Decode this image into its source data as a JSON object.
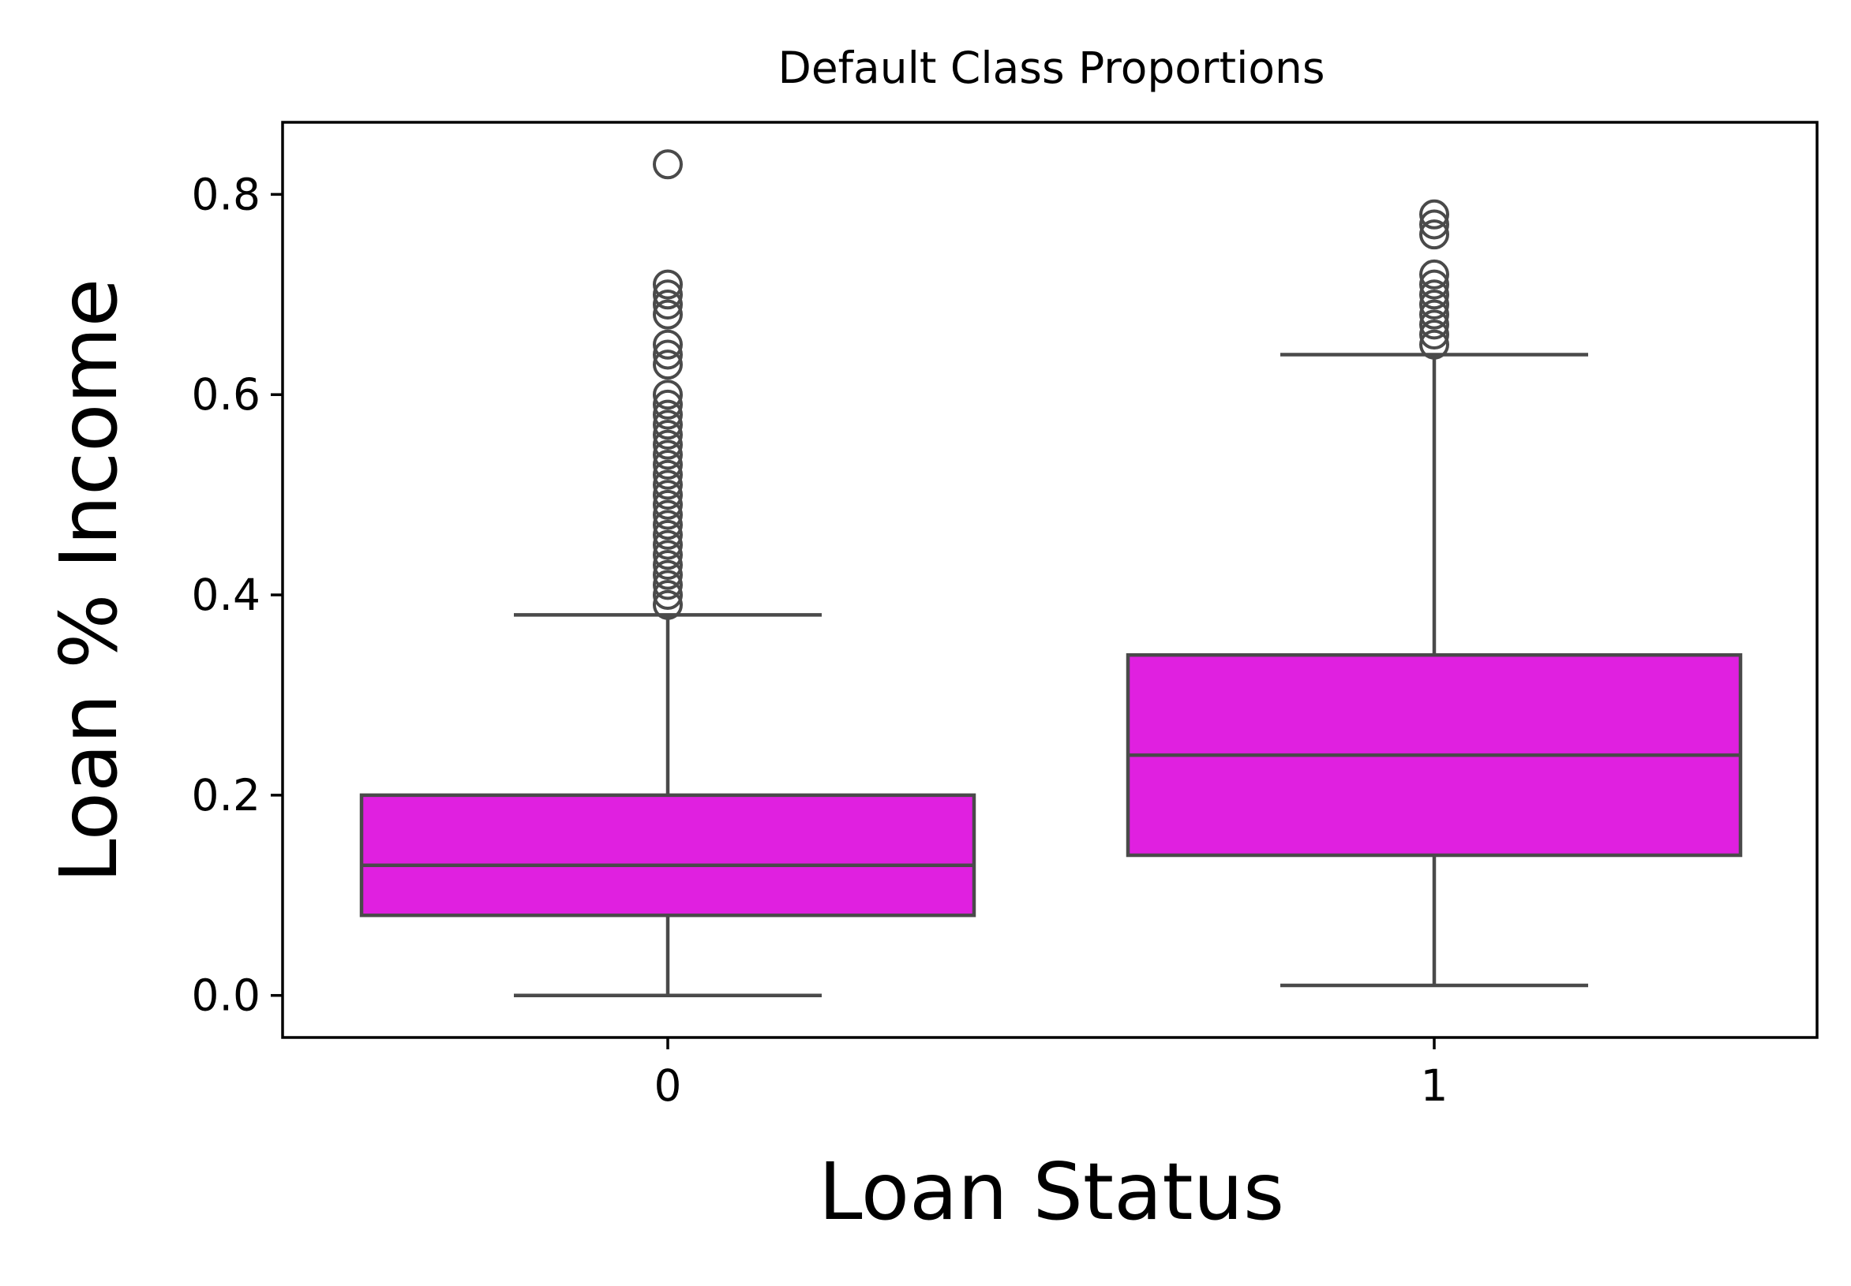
{
  "chart_data": {
    "type": "box",
    "title": "Default Class Proportions",
    "xlabel": "Loan Status",
    "ylabel": "Loan % Income",
    "ylim": [
      -0.042,
      0.872
    ],
    "yticks": [
      "0.0",
      "0.2",
      "0.4",
      "0.6",
      "0.8"
    ],
    "categories": [
      "0",
      "1"
    ],
    "grid": false,
    "colors": {
      "box_fill": "#e020e0",
      "line": "#4a4a4a",
      "axis": "#000000"
    },
    "boxes": [
      {
        "category": "0",
        "whisker_low": 0.0,
        "q1": 0.08,
        "median": 0.13,
        "q3": 0.2,
        "whisker_high": 0.38,
        "outliers": [
          0.83,
          0.71,
          0.7,
          0.69,
          0.68,
          0.65,
          0.64,
          0.63,
          0.6,
          0.59,
          0.58,
          0.57,
          0.56,
          0.55,
          0.54,
          0.53,
          0.52,
          0.51,
          0.5,
          0.49,
          0.48,
          0.47,
          0.46,
          0.45,
          0.44,
          0.43,
          0.42,
          0.41,
          0.4,
          0.39
        ]
      },
      {
        "category": "1",
        "whisker_low": 0.01,
        "q1": 0.14,
        "median": 0.24,
        "q3": 0.34,
        "whisker_high": 0.64,
        "outliers": [
          0.78,
          0.77,
          0.76,
          0.72,
          0.71,
          0.7,
          0.69,
          0.68,
          0.67,
          0.66,
          0.65
        ]
      }
    ]
  }
}
